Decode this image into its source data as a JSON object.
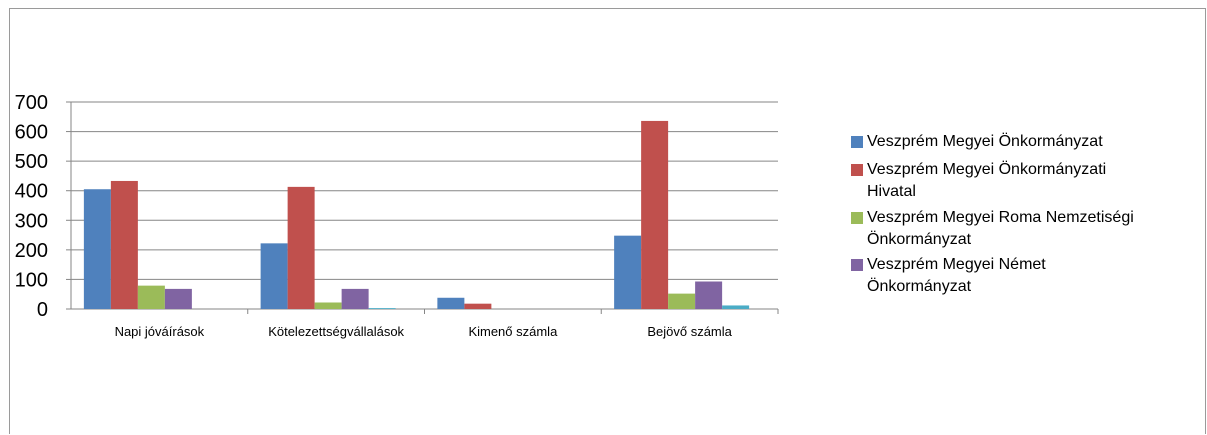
{
  "chart_data": {
    "type": "bar",
    "categories": [
      "Napi jóváírások",
      "Kötelezettségvállalások",
      "Kimenő számla",
      "Bejövő számla"
    ],
    "ylim": [
      0,
      700
    ],
    "yticks": [
      0,
      100,
      200,
      300,
      400,
      500,
      600,
      700
    ],
    "grid": true,
    "legend_position": "right",
    "series": [
      {
        "name": "Veszprém Megyei Önkormányzat",
        "color": "#4f81bd",
        "values": [
          405,
          222,
          38,
          248
        ]
      },
      {
        "name": "Veszprém Megyei Önkormányzati Hivatal",
        "color": "#c0504d",
        "values": [
          433,
          413,
          18,
          636
        ]
      },
      {
        "name": "Veszprém Megyei  Roma Nemzetiségi Önkormányzat",
        "color": "#9bbb59",
        "values": [
          79,
          22,
          0,
          52
        ]
      },
      {
        "name": "Veszprém Megyei  Német Önkormányzat",
        "color": "#8064a2",
        "values": [
          68,
          68,
          0,
          93
        ]
      },
      {
        "name": "",
        "color": "#4bacc6",
        "values": [
          0,
          3,
          0,
          12
        ]
      }
    ],
    "legend": [
      {
        "color": "#4f81bd",
        "lines": [
          "Veszprém Megyei Önkormányzat"
        ]
      },
      {
        "color": "#c0504d",
        "lines": [
          "Veszprém Megyei Önkormányzati",
          "Hivatal"
        ]
      },
      {
        "color": "#9bbb59",
        "lines": [
          "Veszprém Megyei  Roma Nemzetiségi",
          "Önkormányzat"
        ]
      },
      {
        "color": "#8064a2",
        "lines": [
          "Veszprém Megyei  Német",
          "Önkormányzat"
        ]
      }
    ]
  }
}
